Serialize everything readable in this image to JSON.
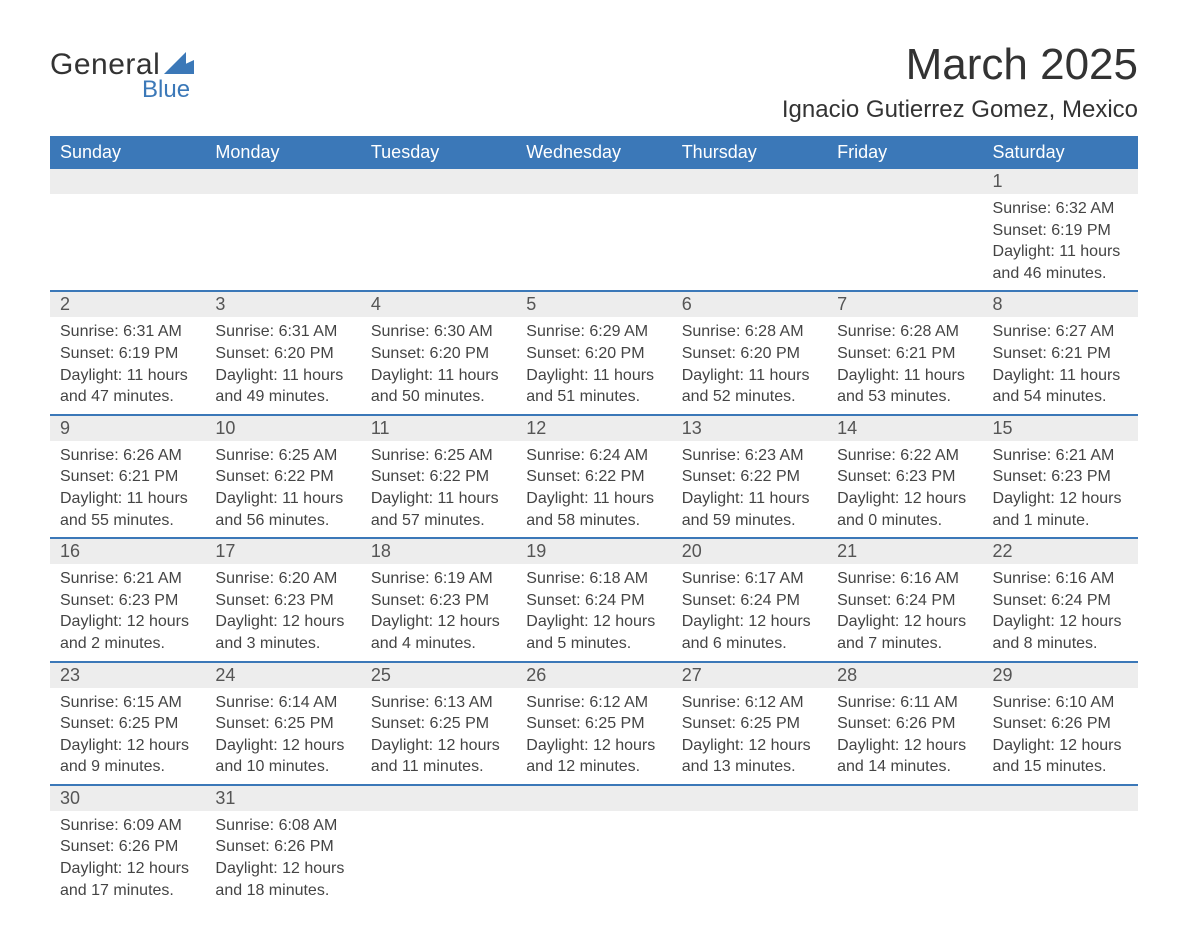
{
  "brand": {
    "top": "General",
    "bottom": "Blue",
    "accent": "#3b78b8"
  },
  "title": "March 2025",
  "location": "Ignacio Gutierrez Gomez, Mexico",
  "colors": {
    "header_bg": "#3b78b8",
    "header_text": "#ffffff",
    "daynum_bg": "#ededed",
    "row_divider": "#3b78b8",
    "body_text": "#444444"
  },
  "weekdays": [
    "Sunday",
    "Monday",
    "Tuesday",
    "Wednesday",
    "Thursday",
    "Friday",
    "Saturday"
  ],
  "weeks": [
    [
      null,
      null,
      null,
      null,
      null,
      null,
      {
        "n": "1",
        "sr": "Sunrise: 6:32 AM",
        "ss": "Sunset: 6:19 PM",
        "d1": "Daylight: 11 hours",
        "d2": "and 46 minutes."
      }
    ],
    [
      {
        "n": "2",
        "sr": "Sunrise: 6:31 AM",
        "ss": "Sunset: 6:19 PM",
        "d1": "Daylight: 11 hours",
        "d2": "and 47 minutes."
      },
      {
        "n": "3",
        "sr": "Sunrise: 6:31 AM",
        "ss": "Sunset: 6:20 PM",
        "d1": "Daylight: 11 hours",
        "d2": "and 49 minutes."
      },
      {
        "n": "4",
        "sr": "Sunrise: 6:30 AM",
        "ss": "Sunset: 6:20 PM",
        "d1": "Daylight: 11 hours",
        "d2": "and 50 minutes."
      },
      {
        "n": "5",
        "sr": "Sunrise: 6:29 AM",
        "ss": "Sunset: 6:20 PM",
        "d1": "Daylight: 11 hours",
        "d2": "and 51 minutes."
      },
      {
        "n": "6",
        "sr": "Sunrise: 6:28 AM",
        "ss": "Sunset: 6:20 PM",
        "d1": "Daylight: 11 hours",
        "d2": "and 52 minutes."
      },
      {
        "n": "7",
        "sr": "Sunrise: 6:28 AM",
        "ss": "Sunset: 6:21 PM",
        "d1": "Daylight: 11 hours",
        "d2": "and 53 minutes."
      },
      {
        "n": "8",
        "sr": "Sunrise: 6:27 AM",
        "ss": "Sunset: 6:21 PM",
        "d1": "Daylight: 11 hours",
        "d2": "and 54 minutes."
      }
    ],
    [
      {
        "n": "9",
        "sr": "Sunrise: 6:26 AM",
        "ss": "Sunset: 6:21 PM",
        "d1": "Daylight: 11 hours",
        "d2": "and 55 minutes."
      },
      {
        "n": "10",
        "sr": "Sunrise: 6:25 AM",
        "ss": "Sunset: 6:22 PM",
        "d1": "Daylight: 11 hours",
        "d2": "and 56 minutes."
      },
      {
        "n": "11",
        "sr": "Sunrise: 6:25 AM",
        "ss": "Sunset: 6:22 PM",
        "d1": "Daylight: 11 hours",
        "d2": "and 57 minutes."
      },
      {
        "n": "12",
        "sr": "Sunrise: 6:24 AM",
        "ss": "Sunset: 6:22 PM",
        "d1": "Daylight: 11 hours",
        "d2": "and 58 minutes."
      },
      {
        "n": "13",
        "sr": "Sunrise: 6:23 AM",
        "ss": "Sunset: 6:22 PM",
        "d1": "Daylight: 11 hours",
        "d2": "and 59 minutes."
      },
      {
        "n": "14",
        "sr": "Sunrise: 6:22 AM",
        "ss": "Sunset: 6:23 PM",
        "d1": "Daylight: 12 hours",
        "d2": "and 0 minutes."
      },
      {
        "n": "15",
        "sr": "Sunrise: 6:21 AM",
        "ss": "Sunset: 6:23 PM",
        "d1": "Daylight: 12 hours",
        "d2": "and 1 minute."
      }
    ],
    [
      {
        "n": "16",
        "sr": "Sunrise: 6:21 AM",
        "ss": "Sunset: 6:23 PM",
        "d1": "Daylight: 12 hours",
        "d2": "and 2 minutes."
      },
      {
        "n": "17",
        "sr": "Sunrise: 6:20 AM",
        "ss": "Sunset: 6:23 PM",
        "d1": "Daylight: 12 hours",
        "d2": "and 3 minutes."
      },
      {
        "n": "18",
        "sr": "Sunrise: 6:19 AM",
        "ss": "Sunset: 6:23 PM",
        "d1": "Daylight: 12 hours",
        "d2": "and 4 minutes."
      },
      {
        "n": "19",
        "sr": "Sunrise: 6:18 AM",
        "ss": "Sunset: 6:24 PM",
        "d1": "Daylight: 12 hours",
        "d2": "and 5 minutes."
      },
      {
        "n": "20",
        "sr": "Sunrise: 6:17 AM",
        "ss": "Sunset: 6:24 PM",
        "d1": "Daylight: 12 hours",
        "d2": "and 6 minutes."
      },
      {
        "n": "21",
        "sr": "Sunrise: 6:16 AM",
        "ss": "Sunset: 6:24 PM",
        "d1": "Daylight: 12 hours",
        "d2": "and 7 minutes."
      },
      {
        "n": "22",
        "sr": "Sunrise: 6:16 AM",
        "ss": "Sunset: 6:24 PM",
        "d1": "Daylight: 12 hours",
        "d2": "and 8 minutes."
      }
    ],
    [
      {
        "n": "23",
        "sr": "Sunrise: 6:15 AM",
        "ss": "Sunset: 6:25 PM",
        "d1": "Daylight: 12 hours",
        "d2": "and 9 minutes."
      },
      {
        "n": "24",
        "sr": "Sunrise: 6:14 AM",
        "ss": "Sunset: 6:25 PM",
        "d1": "Daylight: 12 hours",
        "d2": "and 10 minutes."
      },
      {
        "n": "25",
        "sr": "Sunrise: 6:13 AM",
        "ss": "Sunset: 6:25 PM",
        "d1": "Daylight: 12 hours",
        "d2": "and 11 minutes."
      },
      {
        "n": "26",
        "sr": "Sunrise: 6:12 AM",
        "ss": "Sunset: 6:25 PM",
        "d1": "Daylight: 12 hours",
        "d2": "and 12 minutes."
      },
      {
        "n": "27",
        "sr": "Sunrise: 6:12 AM",
        "ss": "Sunset: 6:25 PM",
        "d1": "Daylight: 12 hours",
        "d2": "and 13 minutes."
      },
      {
        "n": "28",
        "sr": "Sunrise: 6:11 AM",
        "ss": "Sunset: 6:26 PM",
        "d1": "Daylight: 12 hours",
        "d2": "and 14 minutes."
      },
      {
        "n": "29",
        "sr": "Sunrise: 6:10 AM",
        "ss": "Sunset: 6:26 PM",
        "d1": "Daylight: 12 hours",
        "d2": "and 15 minutes."
      }
    ],
    [
      {
        "n": "30",
        "sr": "Sunrise: 6:09 AM",
        "ss": "Sunset: 6:26 PM",
        "d1": "Daylight: 12 hours",
        "d2": "and 17 minutes."
      },
      {
        "n": "31",
        "sr": "Sunrise: 6:08 AM",
        "ss": "Sunset: 6:26 PM",
        "d1": "Daylight: 12 hours",
        "d2": "and 18 minutes."
      },
      null,
      null,
      null,
      null,
      null
    ]
  ]
}
